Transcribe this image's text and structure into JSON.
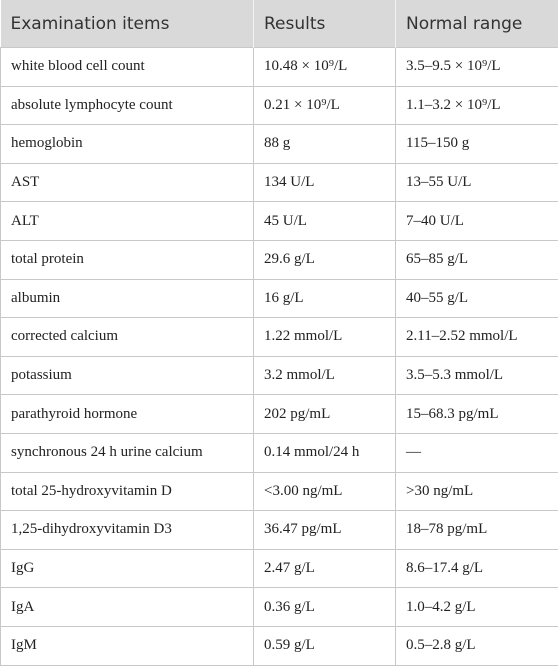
{
  "table": {
    "header": [
      "Examination items",
      "Results",
      "Normal range"
    ],
    "rows": [
      [
        "white blood cell count",
        "10.48 × 10⁹/L",
        "3.5–9.5 × 10⁹/L"
      ],
      [
        "absolute lymphocyte count",
        "0.21 × 10⁹/L",
        "1.1–3.2 × 10⁹/L"
      ],
      [
        "hemoglobin",
        "88 g",
        "115–150 g"
      ],
      [
        "AST",
        "134 U/L",
        "13–55 U/L"
      ],
      [
        "ALT",
        "45 U/L",
        "7–40 U/L"
      ],
      [
        "total protein",
        "29.6 g/L",
        "65–85 g/L"
      ],
      [
        "albumin",
        "16 g/L",
        "40–55 g/L"
      ],
      [
        "corrected calcium",
        "1.22 mmol/L",
        "2.11–2.52 mmol/L"
      ],
      [
        "potassium",
        "3.2 mmol/L",
        "3.5–5.3 mmol/L"
      ],
      [
        "parathyroid hormone",
        "202 pg/mL",
        "15–68.3 pg/mL"
      ],
      [
        "synchronous 24 h urine calcium",
        "0.14 mmol/24 h",
        "—"
      ],
      [
        "total 25-hydroxyvitamin D",
        "˂3.00 ng/mL",
        "˃30 ng/mL"
      ],
      [
        "1,25-dihydroxyvitamin D3",
        "36.47 pg/mL",
        "18–78 pg/mL"
      ],
      [
        "IgG",
        "2.47 g/L",
        "8.6–17.4 g/L"
      ],
      [
        "IgA",
        "0.36 g/L",
        "1.0–4.2 g/L"
      ],
      [
        "IgM",
        "0.59 g/L",
        "0.5–2.8 g/L"
      ]
    ]
  }
}
